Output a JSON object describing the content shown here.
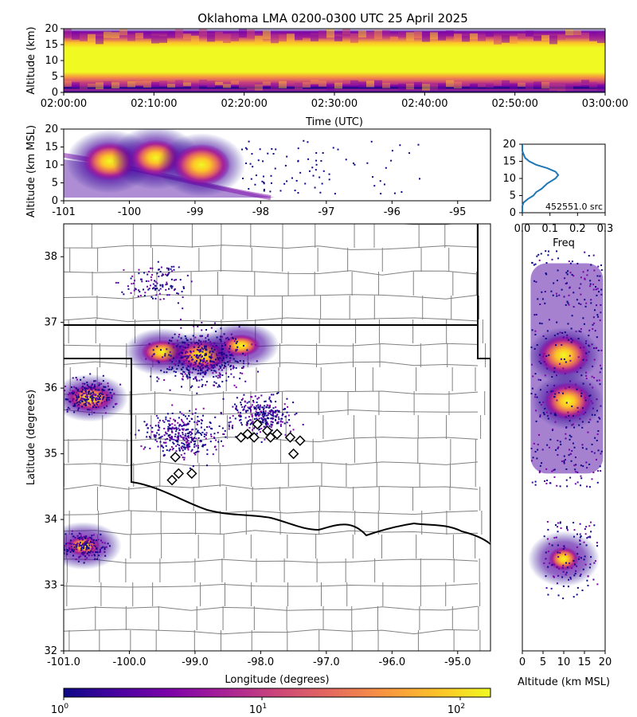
{
  "title": "Oklahoma LMA 0200-0300 UTC 25 April 2025",
  "panels": {
    "time_height": {
      "ylabel": "Altitude (km)",
      "xlabel": "Time (UTC)",
      "yticks": [
        "0",
        "5",
        "10",
        "15",
        "20"
      ],
      "xticks": [
        "02:00:00",
        "02:10:00",
        "02:20:00",
        "02:30:00",
        "02:40:00",
        "02:50:00",
        "03:00:00"
      ]
    },
    "lon_alt": {
      "ylabel": "Altitude (km MSL)",
      "yticks": [
        "0",
        "5",
        "10",
        "15",
        "20"
      ],
      "xticks": [
        "-101",
        "-100",
        "-99",
        "-98",
        "-97",
        "-96",
        "-95"
      ]
    },
    "histogram": {
      "xlabel": "Freq",
      "count_text": "452551.0 src",
      "yticks": [
        "0",
        "5",
        "10",
        "15",
        "20"
      ],
      "xticks": [
        "0.0",
        "0.1",
        "0.2",
        "0.3"
      ]
    },
    "plan": {
      "xlabel": "Longitude (degrees)",
      "ylabel": "Latitude (degrees)",
      "xticks": [
        "-101.0",
        "-100.0",
        "-99.0",
        "-98.0",
        "-97.0",
        "-96.0",
        "-95.0"
      ],
      "yticks": [
        "32",
        "33",
        "34",
        "35",
        "36",
        "37",
        "38"
      ]
    },
    "alt_lat": {
      "xlabel": "Altitude (km MSL)",
      "xticks": [
        "0",
        "5",
        "10",
        "15",
        "20"
      ]
    },
    "colorbar": {
      "tick_labels": [
        "10",
        "10",
        "10"
      ],
      "tick_exponents": [
        "0",
        "1",
        "2"
      ],
      "colormap": "plasma",
      "scale": "log"
    }
  },
  "chart_data": [
    {
      "type": "heatmap",
      "name": "time-height density",
      "x_range": [
        "02:00:00",
        "03:00:00"
      ],
      "ylim": [
        0,
        20
      ],
      "note_shape": "dense band 2-17 km, strongest near 10-12 km"
    },
    {
      "type": "heatmap",
      "name": "longitude-altitude density",
      "xlim": [
        -101,
        -94.5
      ],
      "ylim": [
        0,
        20
      ],
      "cores": [
        {
          "lon": -100.3,
          "alt": 11,
          "intensity": 0.9
        },
        {
          "lon": -99.6,
          "alt": 12,
          "intensity": 0.85
        },
        {
          "lon": -98.9,
          "alt": 10,
          "intensity": 1.0
        }
      ]
    },
    {
      "type": "line",
      "name": "altitude histogram",
      "xlim": [
        0,
        0.3
      ],
      "ylim": [
        0,
        20
      ],
      "points": [
        [
          0.0,
          0
        ],
        [
          0.0,
          2
        ],
        [
          0.005,
          3
        ],
        [
          0.02,
          4
        ],
        [
          0.04,
          5
        ],
        [
          0.05,
          6
        ],
        [
          0.07,
          7
        ],
        [
          0.09,
          8.5
        ],
        [
          0.12,
          10
        ],
        [
          0.13,
          11
        ],
        [
          0.12,
          12
        ],
        [
          0.09,
          13
        ],
        [
          0.05,
          14
        ],
        [
          0.025,
          15
        ],
        [
          0.01,
          16
        ],
        [
          0.005,
          17
        ],
        [
          0.0,
          18
        ],
        [
          0.0,
          20
        ]
      ]
    },
    {
      "type": "heatmap",
      "name": "plan view density",
      "xlim": [
        -101.0,
        -94.5
      ],
      "ylim": [
        32,
        38.5
      ],
      "cores": [
        {
          "lon": -99.5,
          "lat": 36.55,
          "intensity": 0.8
        },
        {
          "lon": -98.9,
          "lat": 36.5,
          "intensity": 1.0
        },
        {
          "lon": -98.3,
          "lat": 36.65,
          "intensity": 0.7
        },
        {
          "lon": -100.6,
          "lat": 35.85,
          "intensity": 0.9
        },
        {
          "lon": -100.7,
          "lat": 33.6,
          "intensity": 0.6
        }
      ],
      "stations": [
        [
          -98.05,
          35.45
        ],
        [
          -97.9,
          35.35
        ],
        [
          -97.75,
          35.3
        ],
        [
          -97.55,
          35.25
        ],
        [
          -97.4,
          35.2
        ],
        [
          -97.5,
          35.0
        ],
        [
          -99.3,
          34.95
        ],
        [
          -99.25,
          34.7
        ],
        [
          -99.05,
          34.7
        ],
        [
          -99.35,
          34.6
        ],
        [
          -98.2,
          35.3
        ],
        [
          -98.3,
          35.25
        ],
        [
          -98.1,
          35.25
        ],
        [
          -97.85,
          35.25
        ]
      ]
    },
    {
      "type": "heatmap",
      "name": "altitude-latitude density",
      "xlim": [
        0,
        20
      ],
      "ylim": [
        32,
        38.5
      ],
      "cores": [
        {
          "alt": 10,
          "lat": 36.5,
          "intensity": 1.0
        },
        {
          "alt": 11,
          "lat": 35.8,
          "intensity": 0.9
        },
        {
          "alt": 10,
          "lat": 33.4,
          "intensity": 0.5
        }
      ]
    }
  ]
}
